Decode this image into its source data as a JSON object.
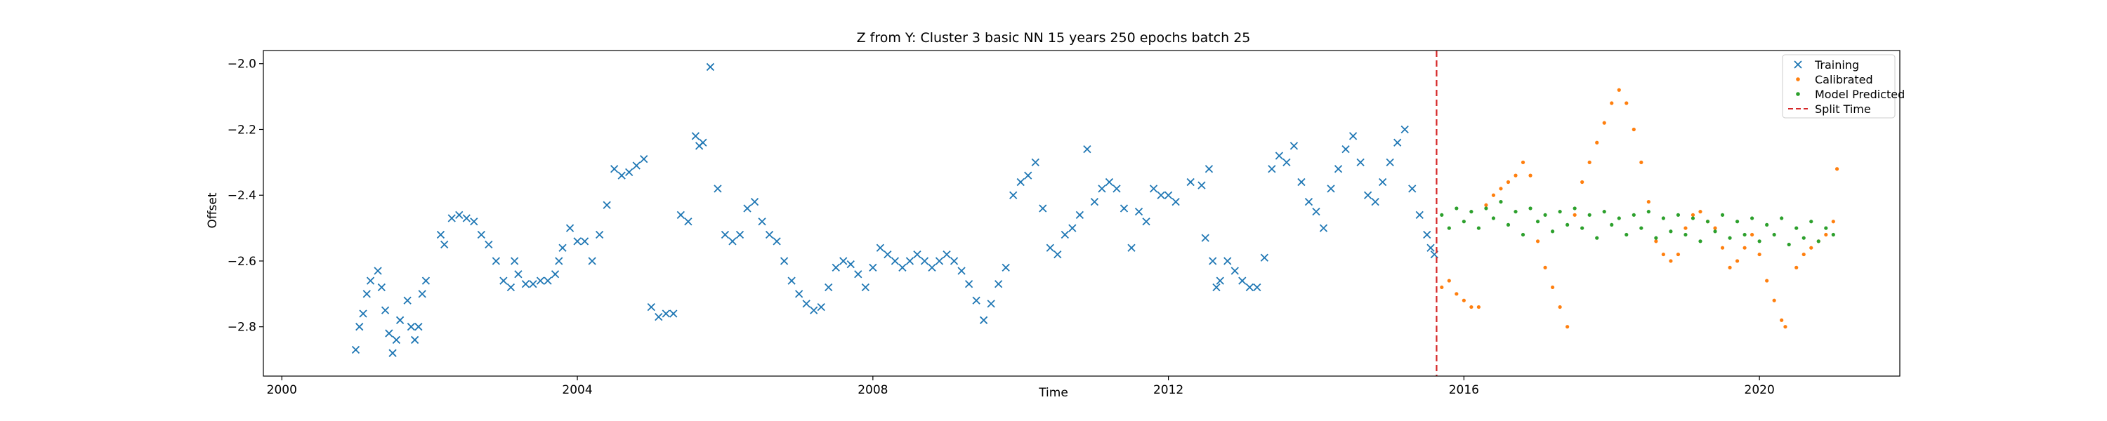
{
  "chart_data": {
    "type": "scatter",
    "title": "Z from Y: Cluster 3 basic NN 15 years 250 epochs batch 25",
    "xlabel": "Time",
    "ylabel": "Offset",
    "xlim": [
      1999.75,
      2021.9
    ],
    "ylim": [
      -2.95,
      -1.96
    ],
    "x_ticks": [
      2000,
      2004,
      2008,
      2012,
      2016,
      2020
    ],
    "x_tick_labels": [
      "2000",
      "2004",
      "2008",
      "2012",
      "2016",
      "2020"
    ],
    "y_ticks": [
      -2.8,
      -2.6,
      -2.4,
      -2.2,
      -2.0
    ],
    "y_tick_labels": [
      "−2.8",
      "−2.6",
      "−2.4",
      "−2.2",
      "−2.0"
    ],
    "grid": false,
    "legend_position": "top-right",
    "split_time": 2015.63,
    "series": [
      {
        "name": "Training",
        "marker": "x",
        "color": "#1f77b4",
        "points": [
          [
            2001.0,
            -2.87
          ],
          [
            2001.05,
            -2.8
          ],
          [
            2001.1,
            -2.76
          ],
          [
            2001.15,
            -2.7
          ],
          [
            2001.2,
            -2.66
          ],
          [
            2001.3,
            -2.63
          ],
          [
            2001.35,
            -2.68
          ],
          [
            2001.4,
            -2.75
          ],
          [
            2001.45,
            -2.82
          ],
          [
            2001.5,
            -2.88
          ],
          [
            2001.55,
            -2.84
          ],
          [
            2001.6,
            -2.78
          ],
          [
            2001.7,
            -2.72
          ],
          [
            2001.75,
            -2.8
          ],
          [
            2001.8,
            -2.84
          ],
          [
            2001.85,
            -2.8
          ],
          [
            2001.9,
            -2.7
          ],
          [
            2001.95,
            -2.66
          ],
          [
            2002.15,
            -2.52
          ],
          [
            2002.2,
            -2.55
          ],
          [
            2002.3,
            -2.47
          ],
          [
            2002.4,
            -2.46
          ],
          [
            2002.5,
            -2.47
          ],
          [
            2002.6,
            -2.48
          ],
          [
            2002.7,
            -2.52
          ],
          [
            2002.8,
            -2.55
          ],
          [
            2002.9,
            -2.6
          ],
          [
            2003.0,
            -2.66
          ],
          [
            2003.1,
            -2.68
          ],
          [
            2003.15,
            -2.6
          ],
          [
            2003.2,
            -2.64
          ],
          [
            2003.3,
            -2.67
          ],
          [
            2003.4,
            -2.67
          ],
          [
            2003.5,
            -2.66
          ],
          [
            2003.6,
            -2.66
          ],
          [
            2003.7,
            -2.64
          ],
          [
            2003.75,
            -2.6
          ],
          [
            2003.8,
            -2.56
          ],
          [
            2003.9,
            -2.5
          ],
          [
            2004.0,
            -2.54
          ],
          [
            2004.1,
            -2.54
          ],
          [
            2004.2,
            -2.6
          ],
          [
            2004.3,
            -2.52
          ],
          [
            2004.4,
            -2.43
          ],
          [
            2004.5,
            -2.32
          ],
          [
            2004.6,
            -2.34
          ],
          [
            2004.7,
            -2.33
          ],
          [
            2004.8,
            -2.31
          ],
          [
            2004.9,
            -2.29
          ],
          [
            2005.0,
            -2.74
          ],
          [
            2005.1,
            -2.77
          ],
          [
            2005.2,
            -2.76
          ],
          [
            2005.3,
            -2.76
          ],
          [
            2005.4,
            -2.46
          ],
          [
            2005.5,
            -2.48
          ],
          [
            2005.6,
            -2.22
          ],
          [
            2005.65,
            -2.25
          ],
          [
            2005.7,
            -2.24
          ],
          [
            2005.8,
            -2.01
          ],
          [
            2005.9,
            -2.38
          ],
          [
            2006.0,
            -2.52
          ],
          [
            2006.1,
            -2.54
          ],
          [
            2006.2,
            -2.52
          ],
          [
            2006.3,
            -2.44
          ],
          [
            2006.4,
            -2.42
          ],
          [
            2006.5,
            -2.48
          ],
          [
            2006.6,
            -2.52
          ],
          [
            2006.7,
            -2.54
          ],
          [
            2006.8,
            -2.6
          ],
          [
            2006.9,
            -2.66
          ],
          [
            2007.0,
            -2.7
          ],
          [
            2007.1,
            -2.73
          ],
          [
            2007.2,
            -2.75
          ],
          [
            2007.3,
            -2.74
          ],
          [
            2007.4,
            -2.68
          ],
          [
            2007.5,
            -2.62
          ],
          [
            2007.6,
            -2.6
          ],
          [
            2007.7,
            -2.61
          ],
          [
            2007.8,
            -2.64
          ],
          [
            2007.9,
            -2.68
          ],
          [
            2008.0,
            -2.62
          ],
          [
            2008.1,
            -2.56
          ],
          [
            2008.2,
            -2.58
          ],
          [
            2008.3,
            -2.6
          ],
          [
            2008.4,
            -2.62
          ],
          [
            2008.5,
            -2.6
          ],
          [
            2008.6,
            -2.58
          ],
          [
            2008.7,
            -2.6
          ],
          [
            2008.8,
            -2.62
          ],
          [
            2008.9,
            -2.6
          ],
          [
            2009.0,
            -2.58
          ],
          [
            2009.1,
            -2.6
          ],
          [
            2009.2,
            -2.63
          ],
          [
            2009.3,
            -2.67
          ],
          [
            2009.4,
            -2.72
          ],
          [
            2009.5,
            -2.78
          ],
          [
            2009.6,
            -2.73
          ],
          [
            2009.7,
            -2.67
          ],
          [
            2009.8,
            -2.62
          ],
          [
            2009.9,
            -2.4
          ],
          [
            2010.0,
            -2.36
          ],
          [
            2010.1,
            -2.34
          ],
          [
            2010.2,
            -2.3
          ],
          [
            2010.3,
            -2.44
          ],
          [
            2010.4,
            -2.56
          ],
          [
            2010.5,
            -2.58
          ],
          [
            2010.6,
            -2.52
          ],
          [
            2010.7,
            -2.5
          ],
          [
            2010.8,
            -2.46
          ],
          [
            2010.9,
            -2.26
          ],
          [
            2011.0,
            -2.42
          ],
          [
            2011.1,
            -2.38
          ],
          [
            2011.2,
            -2.36
          ],
          [
            2011.3,
            -2.38
          ],
          [
            2011.4,
            -2.44
          ],
          [
            2011.5,
            -2.56
          ],
          [
            2011.6,
            -2.45
          ],
          [
            2011.7,
            -2.48
          ],
          [
            2011.8,
            -2.38
          ],
          [
            2011.9,
            -2.4
          ],
          [
            2012.0,
            -2.4
          ],
          [
            2012.1,
            -2.42
          ],
          [
            2012.3,
            -2.36
          ],
          [
            2012.45,
            -2.37
          ],
          [
            2012.5,
            -2.53
          ],
          [
            2012.55,
            -2.32
          ],
          [
            2012.6,
            -2.6
          ],
          [
            2012.65,
            -2.68
          ],
          [
            2012.7,
            -2.66
          ],
          [
            2012.8,
            -2.6
          ],
          [
            2012.9,
            -2.63
          ],
          [
            2013.0,
            -2.66
          ],
          [
            2013.1,
            -2.68
          ],
          [
            2013.2,
            -2.68
          ],
          [
            2013.3,
            -2.59
          ],
          [
            2013.4,
            -2.32
          ],
          [
            2013.5,
            -2.28
          ],
          [
            2013.6,
            -2.3
          ],
          [
            2013.7,
            -2.25
          ],
          [
            2013.8,
            -2.36
          ],
          [
            2013.9,
            -2.42
          ],
          [
            2014.0,
            -2.45
          ],
          [
            2014.1,
            -2.5
          ],
          [
            2014.2,
            -2.38
          ],
          [
            2014.3,
            -2.32
          ],
          [
            2014.4,
            -2.26
          ],
          [
            2014.5,
            -2.22
          ],
          [
            2014.6,
            -2.3
          ],
          [
            2014.7,
            -2.4
          ],
          [
            2014.8,
            -2.42
          ],
          [
            2014.9,
            -2.36
          ],
          [
            2015.0,
            -2.3
          ],
          [
            2015.1,
            -2.24
          ],
          [
            2015.2,
            -2.2
          ],
          [
            2015.3,
            -2.38
          ],
          [
            2015.4,
            -2.46
          ],
          [
            2015.5,
            -2.52
          ],
          [
            2015.55,
            -2.56
          ],
          [
            2015.6,
            -2.58
          ]
        ]
      },
      {
        "name": "Calibrated",
        "marker": "dot",
        "color": "#ff7f0e",
        "points": [
          [
            2015.7,
            -2.68
          ],
          [
            2015.8,
            -2.66
          ],
          [
            2015.9,
            -2.7
          ],
          [
            2016.0,
            -2.72
          ],
          [
            2016.1,
            -2.74
          ],
          [
            2016.2,
            -2.74
          ],
          [
            2016.3,
            -2.43
          ],
          [
            2016.4,
            -2.4
          ],
          [
            2016.5,
            -2.38
          ],
          [
            2016.6,
            -2.36
          ],
          [
            2016.7,
            -2.34
          ],
          [
            2016.8,
            -2.3
          ],
          [
            2016.9,
            -2.34
          ],
          [
            2017.0,
            -2.54
          ],
          [
            2017.1,
            -2.62
          ],
          [
            2017.2,
            -2.68
          ],
          [
            2017.3,
            -2.74
          ],
          [
            2017.4,
            -2.8
          ],
          [
            2017.5,
            -2.46
          ],
          [
            2017.6,
            -2.36
          ],
          [
            2017.7,
            -2.3
          ],
          [
            2017.8,
            -2.24
          ],
          [
            2017.9,
            -2.18
          ],
          [
            2018.0,
            -2.12
          ],
          [
            2018.1,
            -2.08
          ],
          [
            2018.2,
            -2.12
          ],
          [
            2018.3,
            -2.2
          ],
          [
            2018.4,
            -2.3
          ],
          [
            2018.5,
            -2.42
          ],
          [
            2018.6,
            -2.54
          ],
          [
            2018.7,
            -2.58
          ],
          [
            2018.8,
            -2.6
          ],
          [
            2018.9,
            -2.58
          ],
          [
            2019.0,
            -2.5
          ],
          [
            2019.1,
            -2.46
          ],
          [
            2019.2,
            -2.45
          ],
          [
            2019.3,
            -2.48
          ],
          [
            2019.4,
            -2.5
          ],
          [
            2019.5,
            -2.56
          ],
          [
            2019.6,
            -2.62
          ],
          [
            2019.7,
            -2.6
          ],
          [
            2019.8,
            -2.56
          ],
          [
            2019.9,
            -2.52
          ],
          [
            2020.0,
            -2.58
          ],
          [
            2020.1,
            -2.66
          ],
          [
            2020.2,
            -2.72
          ],
          [
            2020.3,
            -2.78
          ],
          [
            2020.35,
            -2.8
          ],
          [
            2020.5,
            -2.62
          ],
          [
            2020.6,
            -2.58
          ],
          [
            2020.7,
            -2.56
          ],
          [
            2020.8,
            -2.54
          ],
          [
            2020.9,
            -2.52
          ],
          [
            2021.0,
            -2.48
          ],
          [
            2021.05,
            -2.32
          ]
        ]
      },
      {
        "name": "Model Predicted",
        "marker": "dot",
        "color": "#2ca02c",
        "points": [
          [
            2015.7,
            -2.46
          ],
          [
            2015.8,
            -2.5
          ],
          [
            2015.9,
            -2.44
          ],
          [
            2016.0,
            -2.48
          ],
          [
            2016.1,
            -2.45
          ],
          [
            2016.2,
            -2.5
          ],
          [
            2016.3,
            -2.44
          ],
          [
            2016.4,
            -2.47
          ],
          [
            2016.5,
            -2.42
          ],
          [
            2016.6,
            -2.49
          ],
          [
            2016.7,
            -2.45
          ],
          [
            2016.8,
            -2.52
          ],
          [
            2016.9,
            -2.44
          ],
          [
            2017.0,
            -2.48
          ],
          [
            2017.1,
            -2.46
          ],
          [
            2017.2,
            -2.51
          ],
          [
            2017.3,
            -2.45
          ],
          [
            2017.4,
            -2.49
          ],
          [
            2017.5,
            -2.44
          ],
          [
            2017.6,
            -2.5
          ],
          [
            2017.7,
            -2.46
          ],
          [
            2017.8,
            -2.53
          ],
          [
            2017.9,
            -2.45
          ],
          [
            2018.0,
            -2.49
          ],
          [
            2018.1,
            -2.47
          ],
          [
            2018.2,
            -2.52
          ],
          [
            2018.3,
            -2.46
          ],
          [
            2018.4,
            -2.5
          ],
          [
            2018.5,
            -2.45
          ],
          [
            2018.6,
            -2.53
          ],
          [
            2018.7,
            -2.47
          ],
          [
            2018.8,
            -2.51
          ],
          [
            2018.9,
            -2.46
          ],
          [
            2019.0,
            -2.52
          ],
          [
            2019.1,
            -2.47
          ],
          [
            2019.2,
            -2.54
          ],
          [
            2019.3,
            -2.48
          ],
          [
            2019.4,
            -2.51
          ],
          [
            2019.5,
            -2.46
          ],
          [
            2019.6,
            -2.53
          ],
          [
            2019.7,
            -2.48
          ],
          [
            2019.8,
            -2.52
          ],
          [
            2019.9,
            -2.47
          ],
          [
            2020.0,
            -2.54
          ],
          [
            2020.1,
            -2.49
          ],
          [
            2020.2,
            -2.52
          ],
          [
            2020.3,
            -2.47
          ],
          [
            2020.4,
            -2.55
          ],
          [
            2020.5,
            -2.5
          ],
          [
            2020.6,
            -2.53
          ],
          [
            2020.7,
            -2.48
          ],
          [
            2020.8,
            -2.54
          ],
          [
            2020.9,
            -2.5
          ],
          [
            2021.0,
            -2.52
          ]
        ]
      }
    ],
    "split_line": {
      "name": "Split Time",
      "color": "#d62728",
      "style": "dashed"
    }
  }
}
